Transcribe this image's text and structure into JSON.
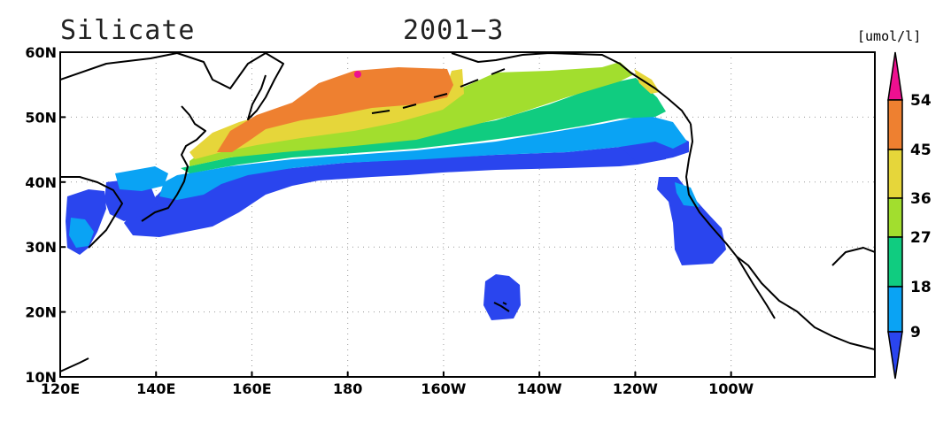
{
  "title": {
    "variable": "Silicate",
    "period": "2001−3"
  },
  "units": "[umol/l]",
  "map": {
    "lon_range": [
      120,
      290
    ],
    "lat_range": [
      10,
      60
    ],
    "x_ticks": [
      {
        "lon": 120,
        "label": "120E"
      },
      {
        "lon": 140,
        "label": "140E"
      },
      {
        "lon": 160,
        "label": "160E"
      },
      {
        "lon": 180,
        "label": "180"
      },
      {
        "lon": 200,
        "label": "160W"
      },
      {
        "lon": 220,
        "label": "140W"
      },
      {
        "lon": 240,
        "label": "120W"
      },
      {
        "lon": 260,
        "label": "100W"
      }
    ],
    "y_ticks": [
      {
        "lat": 10,
        "label": "10N"
      },
      {
        "lat": 20,
        "label": "20N"
      },
      {
        "lat": 30,
        "label": "30N"
      },
      {
        "lat": 40,
        "label": "40N"
      },
      {
        "lat": 50,
        "label": "50N"
      },
      {
        "lat": 60,
        "label": "60N"
      }
    ],
    "grid": "dotted"
  },
  "colorbar": {
    "levels": [
      "9",
      "18",
      "27",
      "36",
      "45",
      "54"
    ],
    "colors": [
      "#2a45ee",
      "#0aa3f4",
      "#10cc80",
      "#a2de2e",
      "#e6d63a",
      "#ee8030",
      "#ee1090"
    ],
    "extends": "both"
  }
}
